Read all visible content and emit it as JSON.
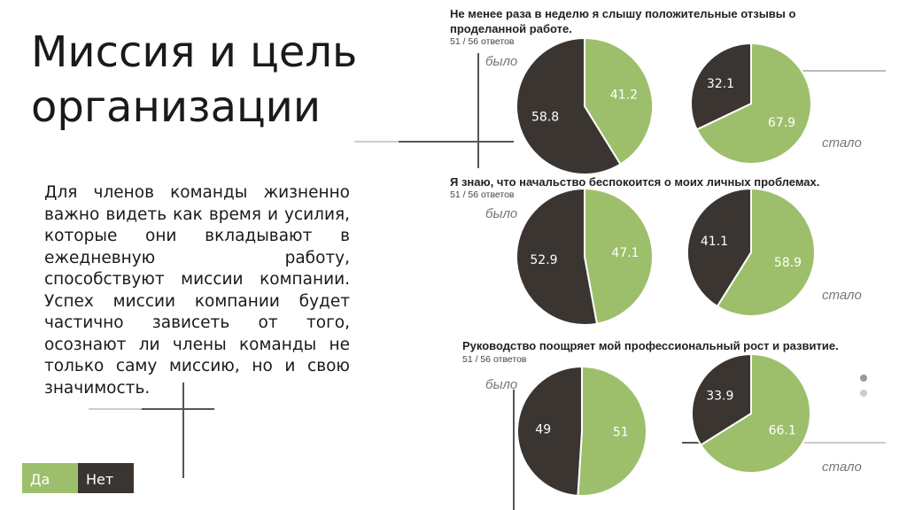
{
  "slide": {
    "title": "Миссия и цель организации",
    "body": "Для членов команды жизненно важно видеть как время и усилия, которые они вкладывают в ежедневную работу, способствуют миссии компании. Успех миссии компании будет частично зависеть от того, осознают ли члены команды не только саму миссию, но и свою значимость."
  },
  "legend": {
    "items": [
      {
        "name": "Да",
        "color": "#9dbf6b"
      },
      {
        "name": "Нет",
        "color": "#3b3532"
      }
    ]
  },
  "chart_data": [
    {
      "type": "pie",
      "title": "Не менее раза в неделю я слышу положительные отзывы о проделанной работе.",
      "responses": "51 / 56 ответов",
      "pies": [
        {
          "label": "было",
          "values": [
            41.2,
            58.8
          ]
        },
        {
          "label": "стало",
          "values": [
            67.9,
            32.1
          ]
        }
      ]
    },
    {
      "type": "pie",
      "title": "Я знаю, что начальство беспокоится о моих личных проблемах.",
      "responses": "51 / 56 ответов",
      "pies": [
        {
          "label": "было",
          "values": [
            47.1,
            52.9
          ]
        },
        {
          "label": "стало",
          "values": [
            58.9,
            41.1
          ]
        }
      ]
    },
    {
      "type": "pie",
      "title": "Руководство поощряет мой профессиональный рост и развитие.",
      "responses": "51 / 56 ответов",
      "pies": [
        {
          "label": "было",
          "values": [
            51,
            49
          ]
        },
        {
          "label": "стало",
          "values": [
            66.1,
            33.9
          ]
        }
      ]
    }
  ]
}
